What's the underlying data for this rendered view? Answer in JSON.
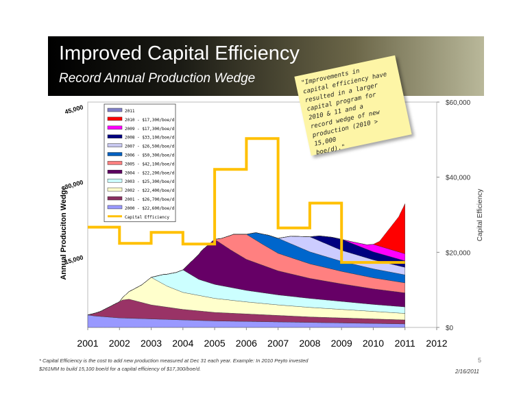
{
  "slide": {
    "title": "Improved Capital Efficiency",
    "subtitle": "Record Annual Production Wedge",
    "note_lines": [
      "\"Improvements in",
      "capital efficiency have",
      "resulted in a larger",
      "capital program for",
      "2010 & 11 and a",
      "record wedge of new",
      "production (2010 > 15,000",
      "boe/d).\""
    ],
    "footnote_lines": [
      "* Capital Efficiency is the cost to add new production measured at Dec 31 each year. Example: In 2010 Peyto invested",
      "$261MM to build 15,100 boe/d for a capital efficiency of $17,300/boe/d."
    ],
    "page_number": "5",
    "date": "2/16/2011"
  },
  "chart_data": {
    "type": "area",
    "ylabel": "Annual Produciton Wedge",
    "y2label": "Capital Efficiency",
    "x_ticks": [
      "2001",
      "2002",
      "2003",
      "2004",
      "2005",
      "2006",
      "2007",
      "2008",
      "2009",
      "2010",
      "2011",
      "2012"
    ],
    "y_ticks": [
      "45,000",
      "30,000",
      "15,000"
    ],
    "y2_ticks": [
      "$60,000",
      "$40,000",
      "$20,000",
      "$0"
    ],
    "xlim": [
      2001,
      2012
    ],
    "ylim": [
      0,
      45000
    ],
    "y2lim": [
      0,
      60000
    ],
    "legend_title_entries": [
      "2011",
      "2010 - $17,300/boe/d",
      "2009 - $17,300/boe/d",
      "2008 - $33,100/boe/d",
      "2007 - $26,500/boe/d",
      "2006 - $50,300/boe/d",
      "2005 - $42,100/boe/d",
      "2004 - $22,200/boe/d",
      "2003 - $25,300/boe/d",
      "2002 - $22,400/boe/d",
      "2001 - $26,700/boe/d",
      "2000 - $22,600/boe/d",
      "Capital Efficiency"
    ],
    "colors": [
      "#8080c8",
      "#ff0000",
      "#ff00ff",
      "#00007f",
      "#c8c8f0",
      "#0060c0",
      "#ff8080",
      "#5c0060",
      "#ccffff",
      "#ffffcc",
      "#8a3060",
      "#9999ff"
    ],
    "series": [
      {
        "name": "2000 - $22,600/boe/d",
        "color": "#9999ff",
        "start": 2001.0,
        "x": [
          2001.0,
          2001.2,
          2001.6,
          2002,
          2003,
          2004,
          2005,
          2006,
          2007,
          2008,
          2009,
          2010,
          2011
        ],
        "y": [
          2500,
          2300,
          2100,
          1900,
          1700,
          1500,
          1300,
          1200,
          1100,
          1000,
          900,
          800,
          700
        ]
      },
      {
        "name": "2001 - $26,700/boe/d",
        "color": "#993366",
        "start": 2001.0,
        "x": [
          2001.0,
          2001.4,
          2001.8,
          2002.1,
          2002.3,
          2003,
          2004,
          2005,
          2006,
          2007,
          2008,
          2009,
          2010,
          2011
        ],
        "y": [
          0,
          1000,
          2500,
          3600,
          3800,
          2800,
          2100,
          1700,
          1500,
          1300,
          1100,
          1000,
          900,
          800
        ]
      },
      {
        "name": "2002 - $22,400/boe/d",
        "color": "#ffffcc",
        "start": 2002.0,
        "x": [
          2002.0,
          2002.3,
          2002.7,
          2003,
          2003.5,
          2004,
          2005,
          2006,
          2007,
          2008,
          2009,
          2010,
          2011
        ],
        "y": [
          0,
          1500,
          3500,
          5500,
          4200,
          3400,
          2800,
          2400,
          2100,
          1900,
          1700,
          1500,
          1300
        ]
      },
      {
        "name": "2003 - $25,300/boe/d",
        "color": "#ccffff",
        "start": 2003.0,
        "x": [
          2003.0,
          2003.4,
          2003.8,
          2004,
          2004.5,
          2005,
          2006,
          2007,
          2008,
          2009,
          2010,
          2011
        ],
        "y": [
          0,
          2000,
          3500,
          4500,
          3200,
          2800,
          2300,
          2000,
          1800,
          1600,
          1400,
          1300
        ]
      },
      {
        "name": "2004 - $22,200/boe/d",
        "color": "#660066",
        "start": 2004.0,
        "x": [
          2004.0,
          2004.2,
          2004.6,
          2005,
          2005.5,
          2006,
          2007,
          2008,
          2009,
          2010,
          2011
        ],
        "y": [
          0,
          2000,
          6000,
          9000,
          7500,
          6200,
          4800,
          4000,
          3500,
          3100,
          2800
        ]
      },
      {
        "name": "2005 - $42,100/boe/d",
        "color": "#ff8080",
        "start": 2005.0,
        "x": [
          2005.0,
          2005.2,
          2005.6,
          2006,
          2006.5,
          2007,
          2008,
          2009,
          2010,
          2011
        ],
        "y": [
          0,
          1000,
          3500,
          5000,
          4200,
          3500,
          2900,
          2500,
          2200,
          2000
        ]
      },
      {
        "name": "2006 - $50,300/boe/d",
        "color": "#0066cc",
        "start": 2006.0,
        "x": [
          2006.0,
          2006.3,
          2006.7,
          2007,
          2008,
          2009,
          2010,
          2011
        ],
        "y": [
          0,
          1500,
          2500,
          3000,
          2400,
          2000,
          1800,
          1600
        ]
      },
      {
        "name": "2007 - $26,500/boe/d",
        "color": "#ccccff",
        "start": 2007.0,
        "x": [
          2007.0,
          2007.4,
          2008,
          2009,
          2010,
          2011
        ],
        "y": [
          0,
          1500,
          3000,
          2200,
          1800,
          1500
        ]
      },
      {
        "name": "2008 - $33,100/boe/d",
        "color": "#000080",
        "start": 2008.0,
        "x": [
          2008.0,
          2008.3,
          2008.7,
          2009,
          2010,
          2011
        ],
        "y": [
          0,
          1000,
          1800,
          2200,
          1600,
          1300
        ]
      },
      {
        "name": "2009 - $17,300/boe/d",
        "color": "#ff00ff",
        "start": 2009.0,
        "x": [
          2009.0,
          2009.3,
          2009.8,
          2010,
          2011
        ],
        "y": [
          0,
          300,
          900,
          1500,
          1400
        ]
      },
      {
        "name": "2010 - $17,300/boe/d",
        "color": "#ff0000",
        "start": 2010.0,
        "x": [
          2010.0,
          2010.2,
          2010.5,
          2010.8,
          2011
        ],
        "y": [
          0,
          1000,
          4000,
          7000,
          10000
        ]
      }
    ],
    "capital_efficiency": {
      "name": "Capital Efficiency",
      "color": "#ffc000",
      "x": [
        2001,
        2002,
        2002,
        2003,
        2003,
        2004,
        2004,
        2005,
        2005,
        2006,
        2006,
        2007,
        2007,
        2008,
        2008,
        2009,
        2009,
        2010,
        2010,
        2011
      ],
      "y": [
        26700,
        26700,
        22400,
        22400,
        25300,
        25300,
        22200,
        22200,
        42100,
        42100,
        50300,
        50300,
        26500,
        26500,
        33100,
        33100,
        17300,
        17300,
        17300,
        17300
      ]
    }
  }
}
